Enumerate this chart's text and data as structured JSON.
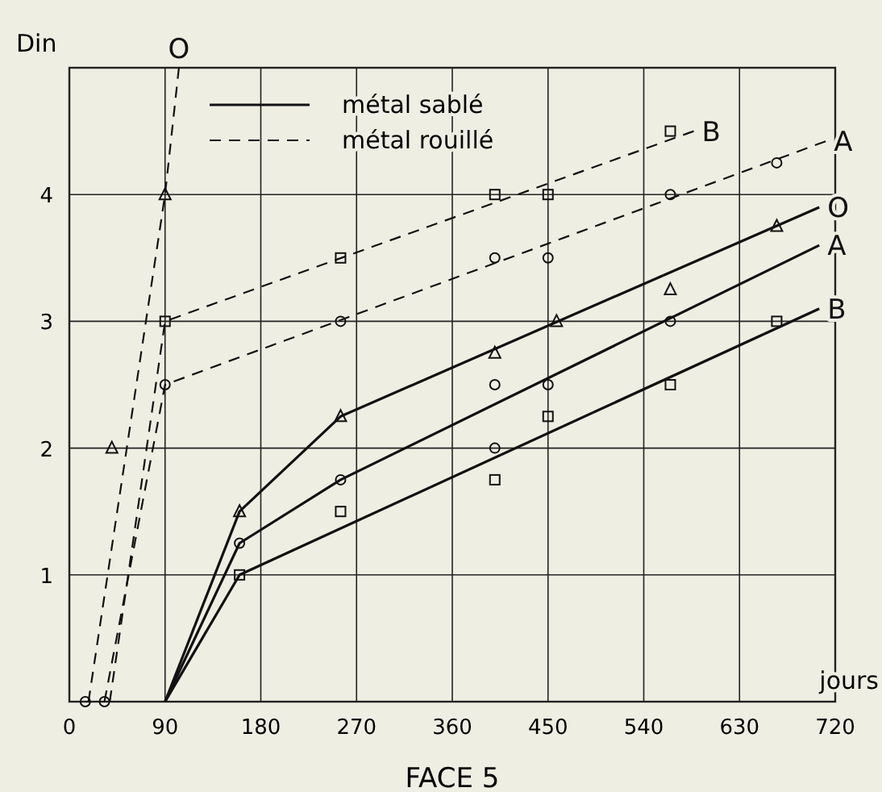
{
  "chart_data": {
    "type": "line",
    "title": "FACE 5",
    "xlabel": "jours",
    "ylabel": "Din",
    "xlim": [
      0,
      720
    ],
    "xticks": [
      0,
      90,
      180,
      270,
      360,
      450,
      540,
      630,
      720
    ],
    "ylim": [
      0,
      5
    ],
    "yticks": [
      1,
      2,
      3,
      4
    ],
    "grid": true,
    "annotations": [
      "métal sablé",
      "métal rouillé"
    ],
    "series": [
      {
        "name": "O",
        "color": "#111111",
        "line_style": "solid",
        "marker": "none",
        "x": [
          90,
          160,
          255,
          705
        ],
        "values": [
          0,
          1.5,
          2.25,
          3.9
        ]
      },
      {
        "name": "A",
        "color": "#111111",
        "line_style": "solid",
        "marker": "none",
        "x": [
          90,
          160,
          255,
          705
        ],
        "values": [
          0,
          1.25,
          1.75,
          3.6
        ]
      },
      {
        "name": "B",
        "color": "#111111",
        "line_style": "solid",
        "marker": "none",
        "x": [
          90,
          160,
          705
        ],
        "values": [
          0,
          1.0,
          3.1
        ]
      },
      {
        "name": "O",
        "color": "#111111",
        "line_style": "dashed",
        "marker": "none",
        "x": [
          18,
          90,
          103
        ],
        "values": [
          0,
          4,
          5
        ]
      },
      {
        "name": "A",
        "color": "#111111",
        "line_style": "dashed",
        "marker": "none",
        "x": [
          33,
          90,
          711
        ],
        "values": [
          0,
          2.5,
          4.42
        ]
      },
      {
        "name": "B",
        "color": "#111111",
        "line_style": "dashed",
        "marker": "none",
        "x": [
          38,
          90,
          587
        ],
        "values": [
          0,
          3,
          4.5
        ]
      },
      {
        "type": "scatter",
        "color": "#111111",
        "marker": "triangle",
        "x": [
          40,
          90,
          160,
          255,
          400,
          458,
          565,
          665
        ],
        "values": [
          2,
          4,
          1.5,
          2.25,
          2.75,
          3.0,
          3.25,
          3.75
        ]
      },
      {
        "type": "scatter",
        "color": "#111111",
        "marker": "circle",
        "x": [
          15,
          33,
          90,
          255,
          400,
          450,
          565,
          665,
          160,
          255,
          400,
          400,
          450,
          565
        ],
        "values": [
          0,
          0,
          2.5,
          3.0,
          3.5,
          3.5,
          4.0,
          4.25,
          1.25,
          1.75,
          2.5,
          2.0,
          2.5,
          3.0
        ]
      },
      {
        "type": "scatter",
        "color": "#111111",
        "marker": "square",
        "x": [
          90,
          255,
          400,
          450,
          565,
          160,
          255,
          400,
          450,
          565,
          665
        ],
        "values": [
          3,
          3.5,
          4,
          4,
          4.5,
          1,
          1.5,
          1.75,
          2.25,
          2.5,
          3.0
        ]
      }
    ]
  }
}
